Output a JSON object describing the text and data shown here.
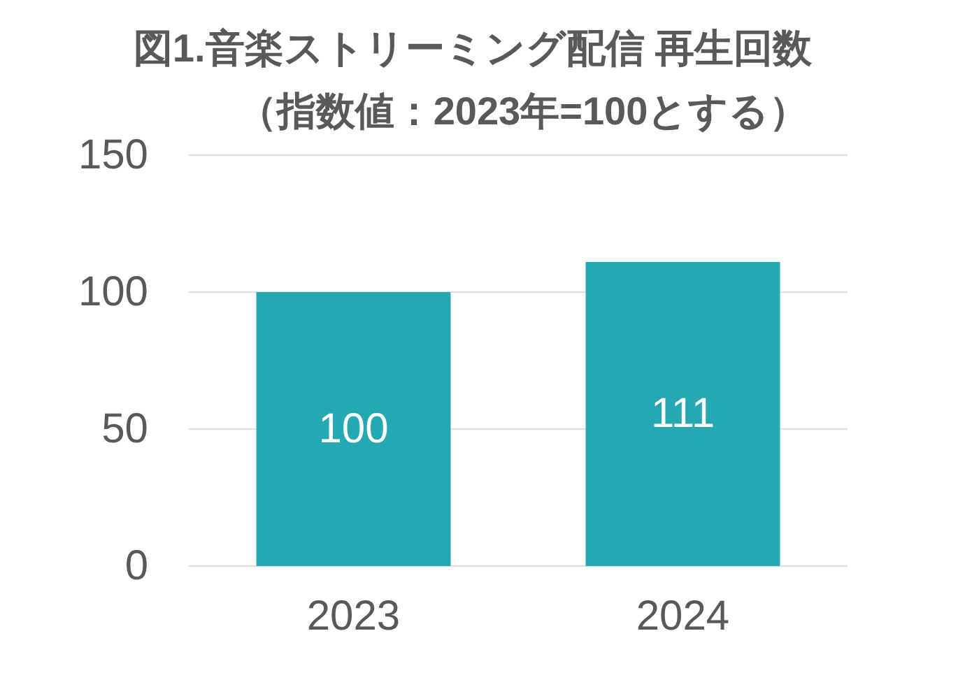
{
  "chart_data": {
    "type": "bar",
    "title": "図1.音楽ストリーミング配信 再生回数",
    "subtitle": "（指数値：2023年=100とする）",
    "categories": [
      "2023",
      "2024"
    ],
    "values": [
      100,
      111
    ],
    "color": "#24a9b3",
    "ylim": [
      0,
      150
    ],
    "yticks": [
      0,
      50,
      100,
      150
    ],
    "grid": "y",
    "data_labels": true
  }
}
